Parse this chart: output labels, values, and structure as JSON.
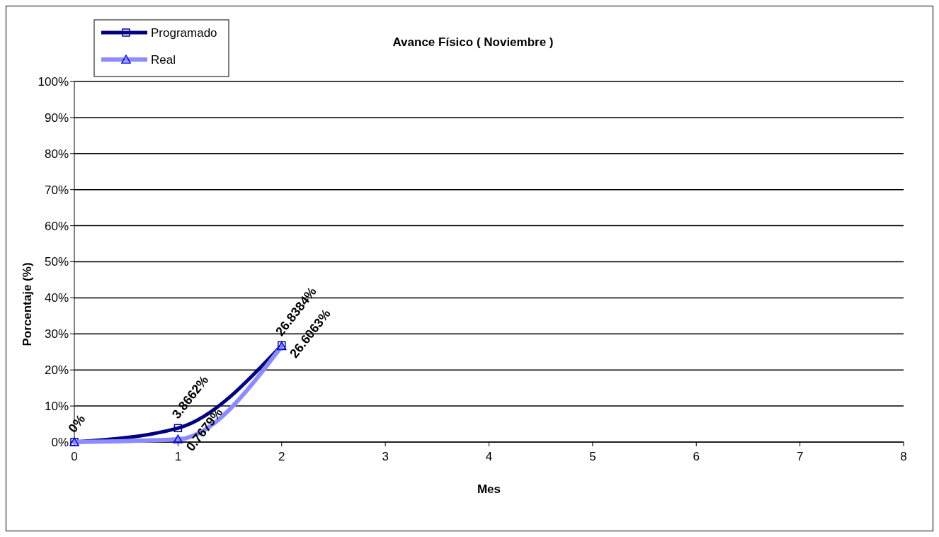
{
  "chart_data": {
    "type": "line",
    "title": "Avance Físico ( Noviembre )",
    "xlabel": "Mes",
    "ylabel": "Porcentaje (%)",
    "x": [
      0,
      1,
      2
    ],
    "series": [
      {
        "name": "Programado",
        "color": "#000080",
        "marker": "square",
        "values": [
          0,
          3.8662,
          26.8384
        ],
        "value_labels": [
          "0%",
          "3.8662%",
          "26.8384%"
        ]
      },
      {
        "name": "Real",
        "color": "#8c8cff",
        "marker": "triangle",
        "values": [
          0,
          0.7679,
          26.6063
        ],
        "value_labels": [
          null,
          "0.7679%",
          "26.6063%"
        ]
      }
    ],
    "xlim": [
      0,
      8
    ],
    "xticks": [
      0,
      1,
      2,
      3,
      4,
      5,
      6,
      7,
      8
    ],
    "ylim": [
      0,
      100
    ],
    "yticks": [
      {
        "value": 0,
        "label": "0%"
      },
      {
        "value": 10,
        "label": "10%"
      },
      {
        "value": 20,
        "label": "20%"
      },
      {
        "value": 30,
        "label": "30%"
      },
      {
        "value": 40,
        "label": "40%"
      },
      {
        "value": 50,
        "label": "50%"
      },
      {
        "value": 60,
        "label": "60%"
      },
      {
        "value": 70,
        "label": "70%"
      },
      {
        "value": 80,
        "label": "80%"
      },
      {
        "value": 90,
        "label": "90%"
      },
      {
        "value": 100,
        "label": "100%"
      }
    ],
    "grid": "y",
    "legend": "top left"
  }
}
